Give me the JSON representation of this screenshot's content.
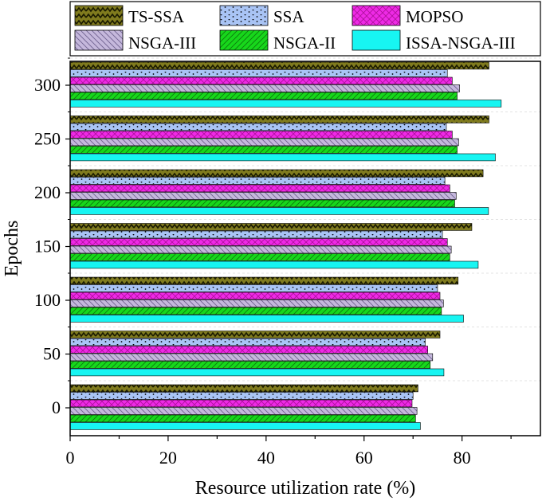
{
  "chart_data": {
    "type": "bar",
    "orientation": "horizontal",
    "title": "",
    "xlabel": "Resource utilization rate (%)",
    "ylabel": "Epochs",
    "xlim": [
      0,
      96
    ],
    "x_ticks": [
      0,
      20,
      40,
      60,
      80
    ],
    "categories": [
      "0",
      "50",
      "100",
      "150",
      "200",
      "250",
      "300"
    ],
    "grid": true,
    "legend_position": "top",
    "series": [
      {
        "name": "TS-SSA",
        "color": "#807b1e",
        "pattern": "zigzag",
        "values": [
          71.0,
          75.5,
          79.2,
          82.0,
          84.3,
          85.5,
          85.5
        ]
      },
      {
        "name": "SSA",
        "color": "#a9c4f5",
        "pattern": "dots",
        "values": [
          70.0,
          72.5,
          75.0,
          76.0,
          76.5,
          76.8,
          77.0
        ]
      },
      {
        "name": "MOPSO",
        "color": "#ee2ae6",
        "pattern": "crosshatch",
        "values": [
          69.8,
          73.0,
          75.5,
          77.0,
          77.5,
          78.0,
          78.0
        ]
      },
      {
        "name": "NSGA-III",
        "color": "#c5b8dc",
        "pattern": "backslash",
        "values": [
          70.8,
          74.0,
          76.2,
          77.8,
          78.8,
          79.3,
          79.5
        ]
      },
      {
        "name": "NSGA-II",
        "color": "#17d71b",
        "pattern": "slash",
        "values": [
          70.5,
          73.5,
          75.8,
          77.5,
          78.5,
          79.0,
          79.0
        ]
      },
      {
        "name": "ISSA-NSGA-III",
        "color": "#17f5f2",
        "pattern": "none",
        "values": [
          71.5,
          76.3,
          80.3,
          83.3,
          85.4,
          86.8,
          88.0
        ]
      }
    ]
  }
}
